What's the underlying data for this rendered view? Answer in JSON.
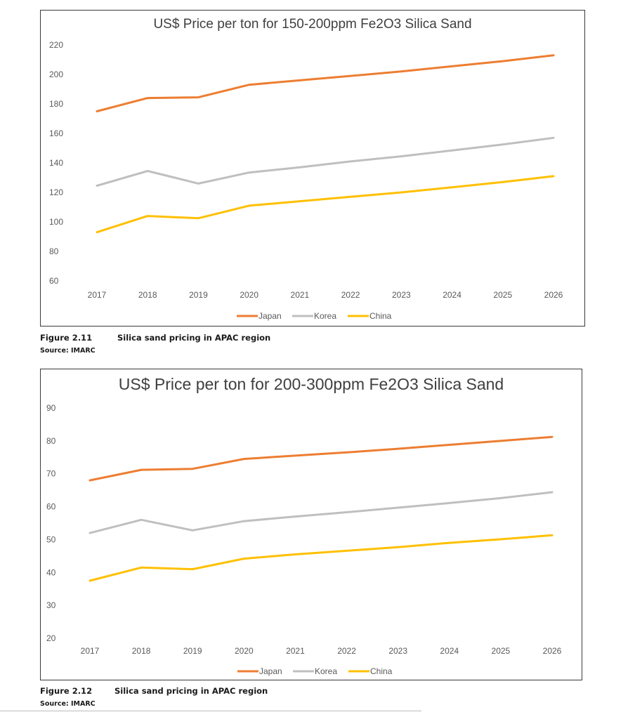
{
  "chart_data": [
    {
      "type": "line",
      "title": "US$ Price per ton for 150-200ppm Fe2O3 Silica Sand",
      "x": [
        "2017",
        "2018",
        "2019",
        "2020",
        "2021",
        "2022",
        "2023",
        "2024",
        "2025",
        "2026"
      ],
      "y_ticks": [
        "60",
        "80",
        "100",
        "120",
        "140",
        "160",
        "180",
        "200",
        "220"
      ],
      "ylim": [
        60,
        220
      ],
      "series": [
        {
          "name": "Japan",
          "color": "#ed7d31",
          "values": [
            175,
            184,
            184.5,
            193,
            196,
            199,
            202,
            205.5,
            209,
            213
          ]
        },
        {
          "name": "Korea",
          "color": "#bfbfbf",
          "values": [
            124.5,
            134.5,
            126,
            133.5,
            137,
            141,
            144.5,
            148.5,
            152.5,
            157
          ]
        },
        {
          "name": "China",
          "color": "#ffc000",
          "values": [
            93,
            104,
            102.5,
            111,
            114,
            117,
            120,
            123.5,
            127,
            131
          ]
        }
      ],
      "legend": "bottom",
      "grid": false
    },
    {
      "type": "line",
      "title": "US$ Price per ton for 200-300ppm Fe2O3 Silica Sand",
      "x": [
        "2017",
        "2018",
        "2019",
        "2020",
        "2021",
        "2022",
        "2023",
        "2024",
        "2025",
        "2026"
      ],
      "y_ticks": [
        "20",
        "30",
        "40",
        "50",
        "60",
        "70",
        "80",
        "90"
      ],
      "ylim": [
        20,
        90
      ],
      "series": [
        {
          "name": "Japan",
          "color": "#ed7d31",
          "values": [
            68,
            71.2,
            71.5,
            74.5,
            75.5,
            76.5,
            77.6,
            78.8,
            80,
            81.2
          ]
        },
        {
          "name": "Korea",
          "color": "#bfbfbf",
          "values": [
            52,
            56,
            52.8,
            55.6,
            57,
            58.3,
            59.7,
            61.1,
            62.6,
            64.4
          ]
        },
        {
          "name": "China",
          "color": "#ffc000",
          "values": [
            37.5,
            41.5,
            41,
            44.2,
            45.5,
            46.6,
            47.7,
            49,
            50.1,
            51.3
          ]
        }
      ],
      "legend": "bottom",
      "grid": false
    }
  ],
  "figures": [
    {
      "number": "Figure 2.11",
      "caption": "Silica sand pricing in APAC region",
      "source": "Source: IMARC"
    },
    {
      "number": "Figure 2.12",
      "caption": "Silica sand pricing in APAC region",
      "source": "Source: IMARC"
    }
  ]
}
